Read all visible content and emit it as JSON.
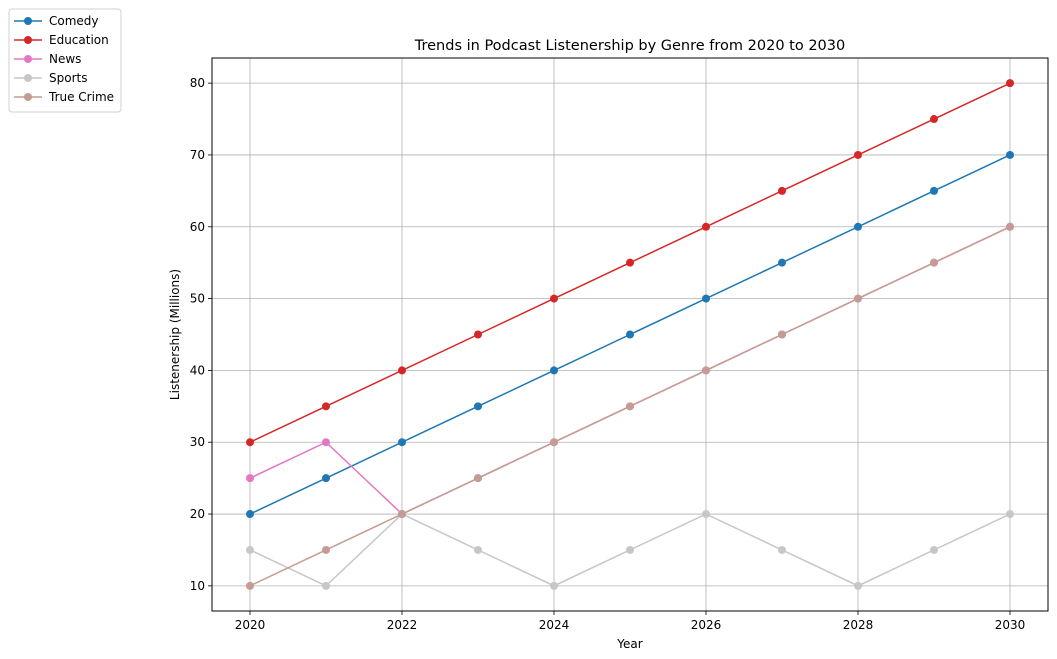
{
  "chart_data": {
    "type": "line",
    "title": "Trends in Podcast Listenership by Genre from 2020 to 2030",
    "xlabel": "Year",
    "ylabel": "Listenership (Millions)",
    "x": [
      2020,
      2021,
      2022,
      2023,
      2024,
      2025,
      2026,
      2027,
      2028,
      2029,
      2030
    ],
    "xlim": [
      2019.5,
      2030.5
    ],
    "ylim": [
      6.5,
      83.5
    ],
    "xticks": [
      2020,
      2022,
      2024,
      2026,
      2028,
      2030
    ],
    "yticks": [
      10,
      20,
      30,
      40,
      50,
      60,
      70,
      80
    ],
    "grid": true,
    "legend_position": "top-left, outside plot",
    "series": [
      {
        "name": "Comedy",
        "color": "#1f77b4",
        "values": [
          20,
          25,
          30,
          35,
          40,
          45,
          50,
          55,
          60,
          65,
          70
        ]
      },
      {
        "name": "Education",
        "color": "#d62728",
        "values": [
          30,
          35,
          40,
          45,
          50,
          55,
          60,
          65,
          70,
          75,
          80
        ]
      },
      {
        "name": "News",
        "color": "#e377c2",
        "values": [
          25,
          30,
          20,
          25,
          30,
          35,
          40,
          45,
          50,
          55,
          60
        ]
      },
      {
        "name": "Sports",
        "color": "#c7c7c7",
        "values": [
          15,
          10,
          20,
          15,
          10,
          15,
          20,
          15,
          10,
          15,
          20
        ]
      },
      {
        "name": "True Crime",
        "color": "#c49c94",
        "values": [
          10,
          15,
          20,
          25,
          30,
          35,
          40,
          45,
          50,
          55,
          60
        ]
      }
    ]
  }
}
